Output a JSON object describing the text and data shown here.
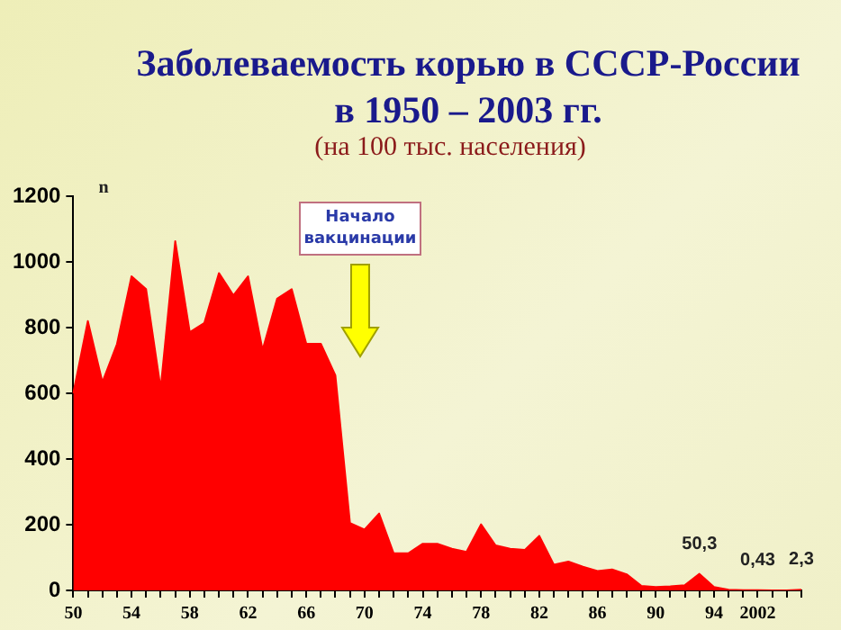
{
  "chart_data": {
    "type": "area",
    "title": "Заболеваемость корью в  СССР-России в 1950 – 2003 гг.",
    "subtitle": "(на 100 тыс. населения)",
    "ylabel": "n",
    "categories": [
      "50",
      null,
      null,
      null,
      "54",
      null,
      null,
      null,
      "58",
      null,
      null,
      null,
      "62",
      null,
      null,
      null,
      "66",
      null,
      null,
      null,
      "70",
      null,
      null,
      null,
      "74",
      null,
      null,
      null,
      "78",
      null,
      null,
      null,
      "82",
      null,
      null,
      null,
      "86",
      null,
      null,
      null,
      "90",
      null,
      null,
      null,
      "94",
      null,
      null,
      "2002",
      null,
      null,
      null
    ],
    "values": [
      600,
      820,
      634,
      750,
      956,
      917,
      615,
      1063,
      786,
      814,
      966,
      898,
      956,
      732,
      888,
      917,
      751,
      751,
      654,
      205,
      185,
      234,
      113,
      113,
      142,
      142,
      127,
      117,
      201,
      137,
      127,
      123,
      166,
      78,
      88,
      72,
      59,
      64,
      49,
      14,
      10,
      12,
      16,
      50.3,
      10,
      2,
      1,
      0.43,
      0,
      0,
      2.3
    ],
    "value_labels": [
      null,
      null,
      null,
      null,
      null,
      null,
      null,
      null,
      null,
      null,
      null,
      null,
      null,
      null,
      null,
      null,
      null,
      null,
      null,
      null,
      null,
      null,
      null,
      null,
      null,
      null,
      null,
      null,
      null,
      null,
      null,
      null,
      null,
      null,
      null,
      null,
      null,
      null,
      null,
      null,
      null,
      null,
      null,
      "50,3",
      null,
      null,
      null,
      "0,43",
      null,
      null,
      "2,3"
    ],
    "color": "#ff0000",
    "ylim": [
      0,
      1200
    ],
    "yticks": [
      0,
      200,
      400,
      600,
      800,
      1000,
      1200
    ],
    "grid": false,
    "legend": false,
    "marker": "none",
    "annotations": [
      "Начало вакцинации"
    ]
  }
}
